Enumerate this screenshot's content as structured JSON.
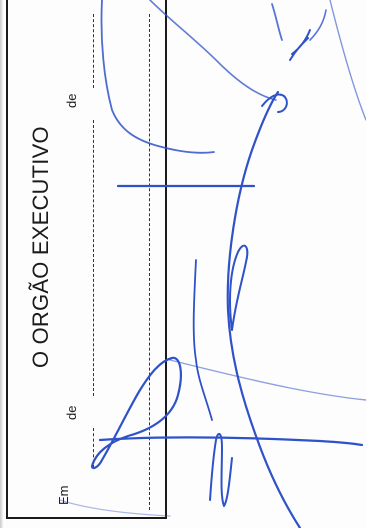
{
  "document": {
    "title": "O ORGÃO EXECUTIVO",
    "date_prefix": "Em",
    "date_sep_1": "de",
    "date_sep_2": "de"
  },
  "colors": {
    "ink": "#2f52c9",
    "border": "#1a1a1a",
    "text": "#1b1b1b"
  }
}
